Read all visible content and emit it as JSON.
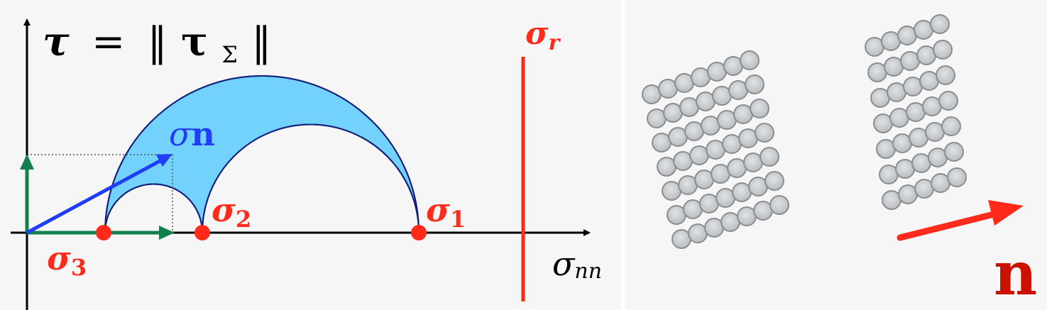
{
  "mohr_diagram": {
    "labels": {
      "tau_lhs": "τ",
      "equals": "=",
      "bar_left": "‖",
      "tau_bold": "τ",
      "tau_sub": "Σ",
      "bar_right": "‖",
      "sigma_r": "σ",
      "sigma_r_sub": "r",
      "sigma_n_sigma": "σ",
      "sigma_n_bold": "n",
      "sigma_1": "σ",
      "sigma_1_sub": "1",
      "sigma_2": "σ",
      "sigma_2_sub": "2",
      "sigma_3": "σ",
      "sigma_3_sub": "3",
      "sigma_nn": "σ",
      "sigma_nn_sub": "nn"
    },
    "stress_values": {
      "sigma_3": 145,
      "sigma_2": 285,
      "sigma_1": 590,
      "sigma_r": 737
    },
    "colors": {
      "principal_points": "#ff2a1a",
      "failure_line": "#ff2a1a",
      "admissible_region": "#72d2fb",
      "circle_outline": "#12207a",
      "stress_vector": "#1f3ef5",
      "components": "#137f4f",
      "axes": "#000000"
    }
  },
  "grain_panel": {
    "normal_label": "n",
    "colors": {
      "grain_fill": "#cfd3d6",
      "grain_edge": "#8a8e91",
      "arrow": "#ff2a1a",
      "label": "#cc1100"
    }
  }
}
